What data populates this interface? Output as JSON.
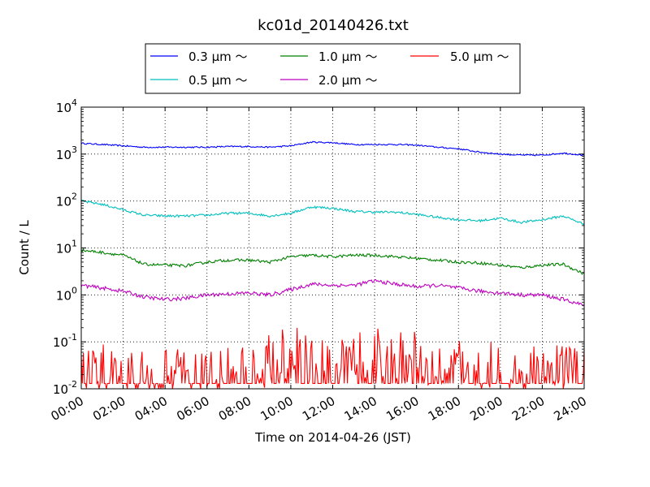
{
  "chart_data": {
    "type": "line",
    "title": "kc01d_20140426.txt",
    "xlabel": "Time on 2014-04-26 (JST)",
    "ylabel": "Count / L",
    "xlim": [
      "00:00",
      "24:00"
    ],
    "ylim": [
      0.01,
      10000
    ],
    "yscale": "log",
    "grid": true,
    "legend_position": "top-center, above plot",
    "x_ticks": [
      "00:00",
      "02:00",
      "04:00",
      "06:00",
      "08:00",
      "10:00",
      "12:00",
      "14:00",
      "16:00",
      "18:00",
      "20:00",
      "22:00",
      "24:00"
    ],
    "y_ticks": [
      {
        "base": "10",
        "exp": "-2"
      },
      {
        "base": "10",
        "exp": "-1"
      },
      {
        "base": "10",
        "exp": "0"
      },
      {
        "base": "10",
        "exp": "1"
      },
      {
        "base": "10",
        "exp": "2"
      },
      {
        "base": "10",
        "exp": "3"
      },
      {
        "base": "10",
        "exp": "4"
      }
    ],
    "x": [
      "00:00",
      "01:00",
      "02:00",
      "03:00",
      "04:00",
      "05:00",
      "06:00",
      "07:00",
      "08:00",
      "09:00",
      "10:00",
      "11:00",
      "12:00",
      "13:00",
      "14:00",
      "15:00",
      "16:00",
      "17:00",
      "18:00",
      "19:00",
      "20:00",
      "21:00",
      "22:00",
      "23:00",
      "24:00"
    ],
    "series": [
      {
        "name": "0.3 μm ～",
        "color": "#0000ff",
        "noise": 0.03,
        "values": [
          1700,
          1600,
          1500,
          1400,
          1400,
          1400,
          1400,
          1450,
          1450,
          1400,
          1500,
          1800,
          1750,
          1600,
          1600,
          1600,
          1550,
          1400,
          1300,
          1100,
          1000,
          950,
          950,
          1050,
          950
        ]
      },
      {
        "name": "0.5 μm ～",
        "color": "#00bfbf",
        "noise": 0.05,
        "values": [
          100,
          85,
          65,
          50,
          48,
          48,
          50,
          55,
          55,
          48,
          55,
          75,
          70,
          60,
          58,
          58,
          52,
          45,
          40,
          38,
          43,
          35,
          40,
          48,
          32
        ]
      },
      {
        "name": "1.0 μm ～",
        "color": "#008000",
        "noise": 0.06,
        "values": [
          9,
          8,
          7,
          4.5,
          4.3,
          4.2,
          5,
          5.5,
          5.5,
          5,
          6.5,
          7,
          6.5,
          7,
          7,
          6.5,
          6,
          5.5,
          5,
          4.8,
          4.3,
          3.8,
          4.3,
          4.5,
          2.8
        ]
      },
      {
        "name": "2.0 μm ～",
        "color": "#bf00bf",
        "noise": 0.08,
        "values": [
          1.6,
          1.4,
          1.2,
          0.9,
          0.8,
          0.85,
          1.0,
          1.05,
          1.1,
          1.0,
          1.3,
          1.7,
          1.6,
          1.6,
          2.0,
          1.7,
          1.5,
          1.6,
          1.4,
          1.2,
          1.1,
          1.0,
          1.0,
          0.8,
          0.6
        ]
      },
      {
        "name": "5.0 μm ～",
        "color": "#ff0000",
        "noise": 0.5,
        "values": [
          0.03,
          0.025,
          0.025,
          0.02,
          0.02,
          0.02,
          0.025,
          0.025,
          0.03,
          0.04,
          0.05,
          0.05,
          0.04,
          0.05,
          0.06,
          0.05,
          0.04,
          0.045,
          0.035,
          0.025,
          0.025,
          0.022,
          0.025,
          0.025,
          0.03
        ]
      }
    ]
  }
}
